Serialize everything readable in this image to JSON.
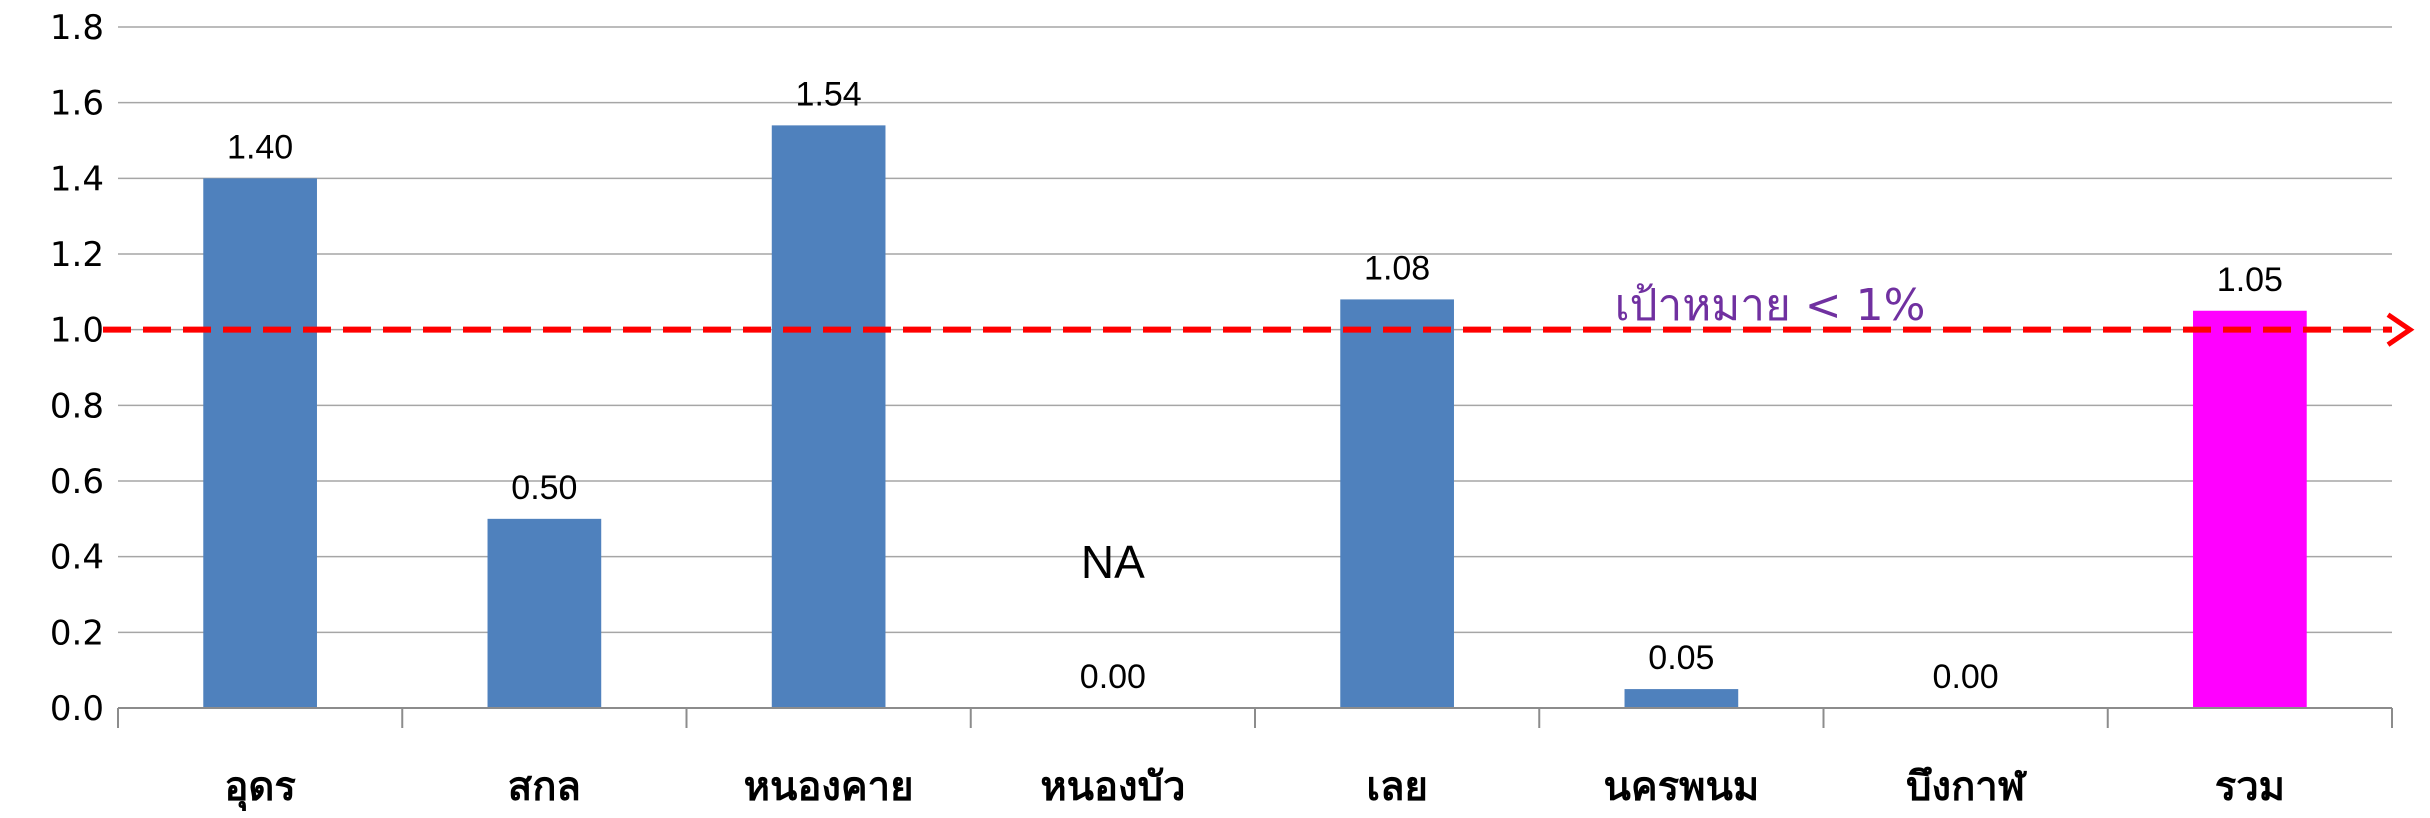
{
  "chart_data": {
    "type": "bar",
    "categories": [
      "อุดร",
      "สกล",
      "หนองคาย",
      "หนองบัว",
      "เลย",
      "นครพนม",
      "บึงกาฬ",
      "รวม"
    ],
    "values": [
      1.4,
      0.5,
      1.54,
      0.0,
      1.08,
      0.05,
      0.0,
      1.05
    ],
    "value_labels": [
      "1.40",
      "0.50",
      "1.54",
      "0.00",
      "1.08",
      "0.05",
      "0.00",
      "1.05"
    ],
    "bar_colors": [
      "#4f81bd",
      "#4f81bd",
      "#4f81bd",
      "#4f81bd",
      "#4f81bd",
      "#4f81bd",
      "#4f81bd",
      "#ff00ff"
    ],
    "ylim": [
      0,
      1.8
    ],
    "yticks": [
      "0.0",
      "0.2",
      "0.4",
      "0.6",
      "0.8",
      "1.0",
      "1.2",
      "1.4",
      "1.6",
      "1.8"
    ],
    "grid": true,
    "legend": "none",
    "reference_line": {
      "value": 1.0,
      "label": "เป้าหมาย < 1%",
      "color": "#ff0000",
      "style": "dashed-arrow"
    },
    "annotations": [
      {
        "category_index": 3,
        "text": "NA"
      }
    ],
    "colors": {
      "grid": "#a6a6a6",
      "axis": "#8c8c8c",
      "target_text": "#7030a0"
    }
  }
}
